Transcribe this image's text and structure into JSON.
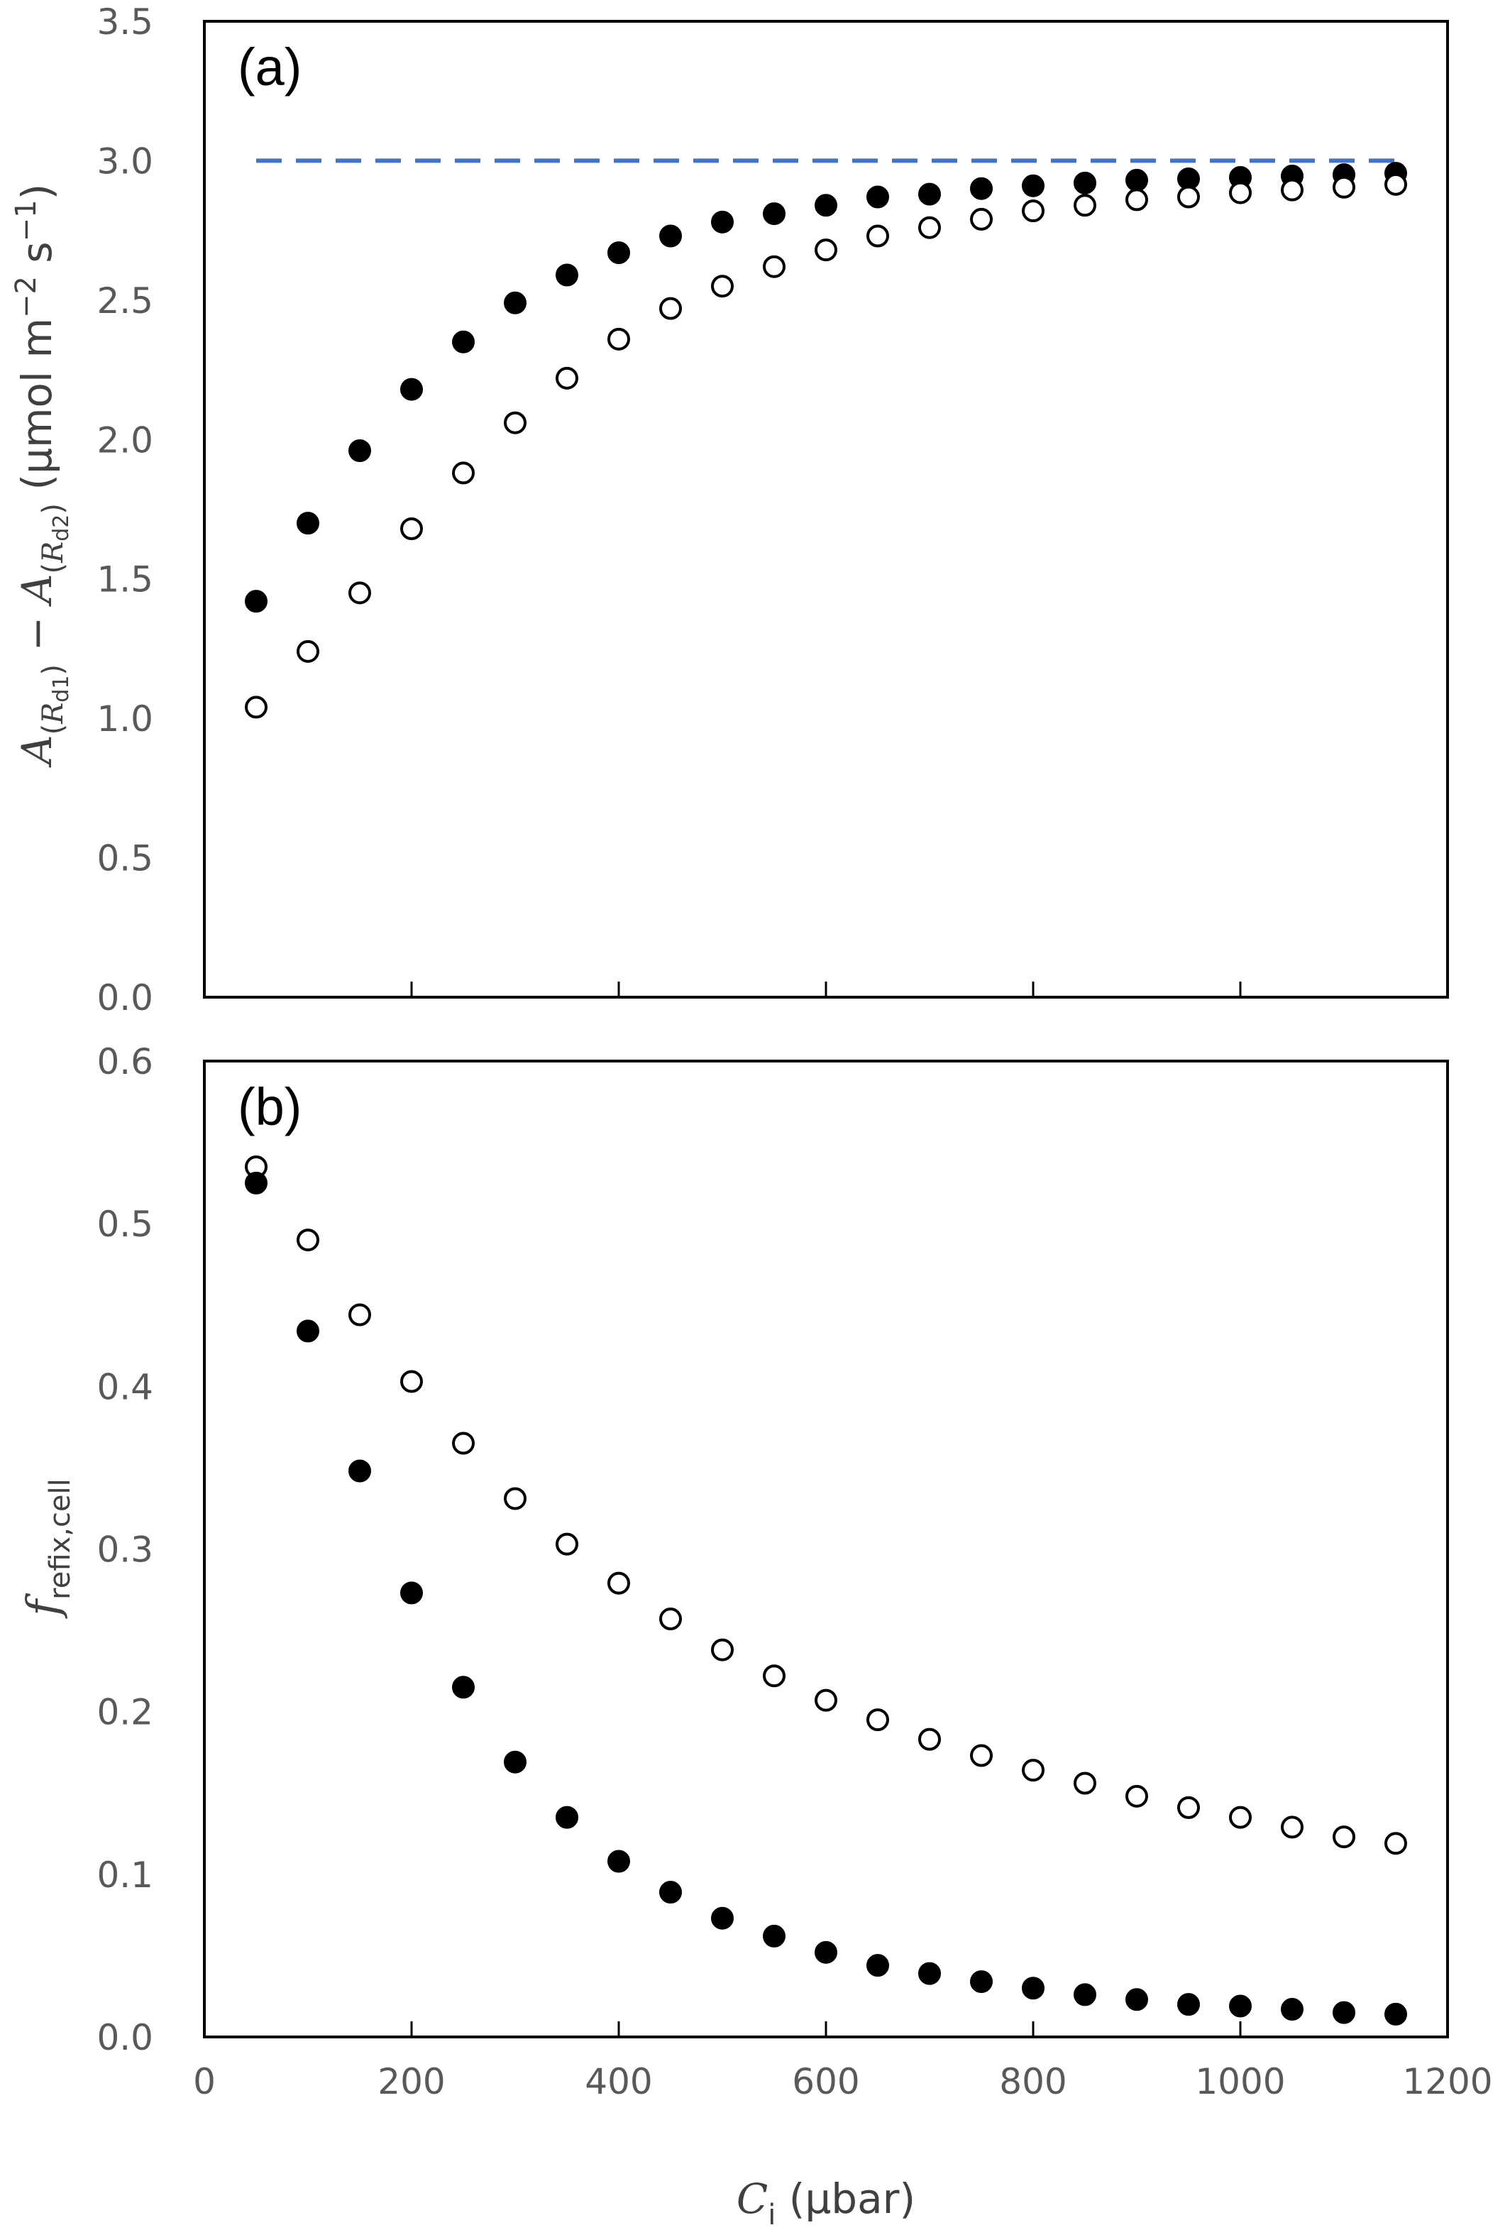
{
  "chart_data": [
    {
      "type": "scatter",
      "panel_label": "(a)",
      "x": [
        50,
        100,
        150,
        200,
        250,
        300,
        350,
        400,
        450,
        500,
        550,
        600,
        650,
        700,
        750,
        800,
        850,
        900,
        950,
        1000,
        1050,
        1100,
        1150
      ],
      "series": [
        {
          "marker": "filled-circle",
          "color": "#000000",
          "values": [
            1.42,
            1.7,
            1.96,
            2.18,
            2.35,
            2.49,
            2.59,
            2.67,
            2.73,
            2.78,
            2.81,
            2.84,
            2.87,
            2.88,
            2.9,
            2.91,
            2.92,
            2.93,
            2.935,
            2.94,
            2.945,
            2.95,
            2.955
          ]
        },
        {
          "marker": "open-circle",
          "color": "#000000",
          "values": [
            1.04,
            1.24,
            1.45,
            1.68,
            1.88,
            2.06,
            2.22,
            2.36,
            2.47,
            2.55,
            2.62,
            2.68,
            2.73,
            2.76,
            2.79,
            2.82,
            2.84,
            2.86,
            2.87,
            2.885,
            2.895,
            2.905,
            2.915
          ]
        }
      ],
      "reference_line": {
        "y": 3.0,
        "x_range": [
          50,
          1150
        ],
        "style": "dashed",
        "color": "#4472C4"
      },
      "xlim": [
        0,
        1200
      ],
      "ylim": [
        0,
        3.5
      ],
      "yticks": [
        "0.0",
        "0.5",
        "1.0",
        "1.5",
        "2.0",
        "2.5",
        "3.0",
        "3.5"
      ],
      "ylabel": {
        "main": "A",
        "sub1_open": "(",
        "sub1_R": "R",
        "sub1_d": "d1",
        "sub1_close": ")",
        "minus": " − ",
        "sub2_R": "R",
        "sub2_d": "d2",
        "unit_open": " (μmol m",
        "unit_exp1": "−2",
        "unit_mid": " s",
        "unit_exp2": "−1",
        "unit_close": ")"
      }
    },
    {
      "type": "scatter",
      "panel_label": "(b)",
      "x": [
        50,
        100,
        150,
        200,
        250,
        300,
        350,
        400,
        450,
        500,
        550,
        600,
        650,
        700,
        750,
        800,
        850,
        900,
        950,
        1000,
        1050,
        1100,
        1150
      ],
      "series": [
        {
          "marker": "open-circle",
          "color": "#000000",
          "values": [
            0.535,
            0.49,
            0.444,
            0.403,
            0.365,
            0.331,
            0.303,
            0.279,
            0.257,
            0.238,
            0.222,
            0.207,
            0.195,
            0.183,
            0.173,
            0.164,
            0.156,
            0.148,
            0.141,
            0.135,
            0.129,
            0.123,
            0.119
          ]
        },
        {
          "marker": "filled-circle",
          "color": "#000000",
          "values": [
            0.525,
            0.434,
            0.348,
            0.273,
            0.215,
            0.169,
            0.135,
            0.108,
            0.089,
            0.073,
            0.062,
            0.052,
            0.044,
            0.039,
            0.034,
            0.03,
            0.026,
            0.023,
            0.02,
            0.019,
            0.017,
            0.015,
            0.014
          ]
        }
      ],
      "xlim": [
        0,
        1200
      ],
      "ylim": [
        0,
        0.6
      ],
      "yticks": [
        "0.0",
        "0.1",
        "0.2",
        "0.3",
        "0.4",
        "0.5",
        "0.6"
      ],
      "xticks": [
        "0",
        "200",
        "400",
        "600",
        "800",
        "1000",
        "1200"
      ],
      "ylabel": {
        "main": "f",
        "sub": "refix,cell"
      },
      "xlabel": {
        "main": "C",
        "sub": "i",
        "unit": " (μbar)"
      }
    }
  ]
}
